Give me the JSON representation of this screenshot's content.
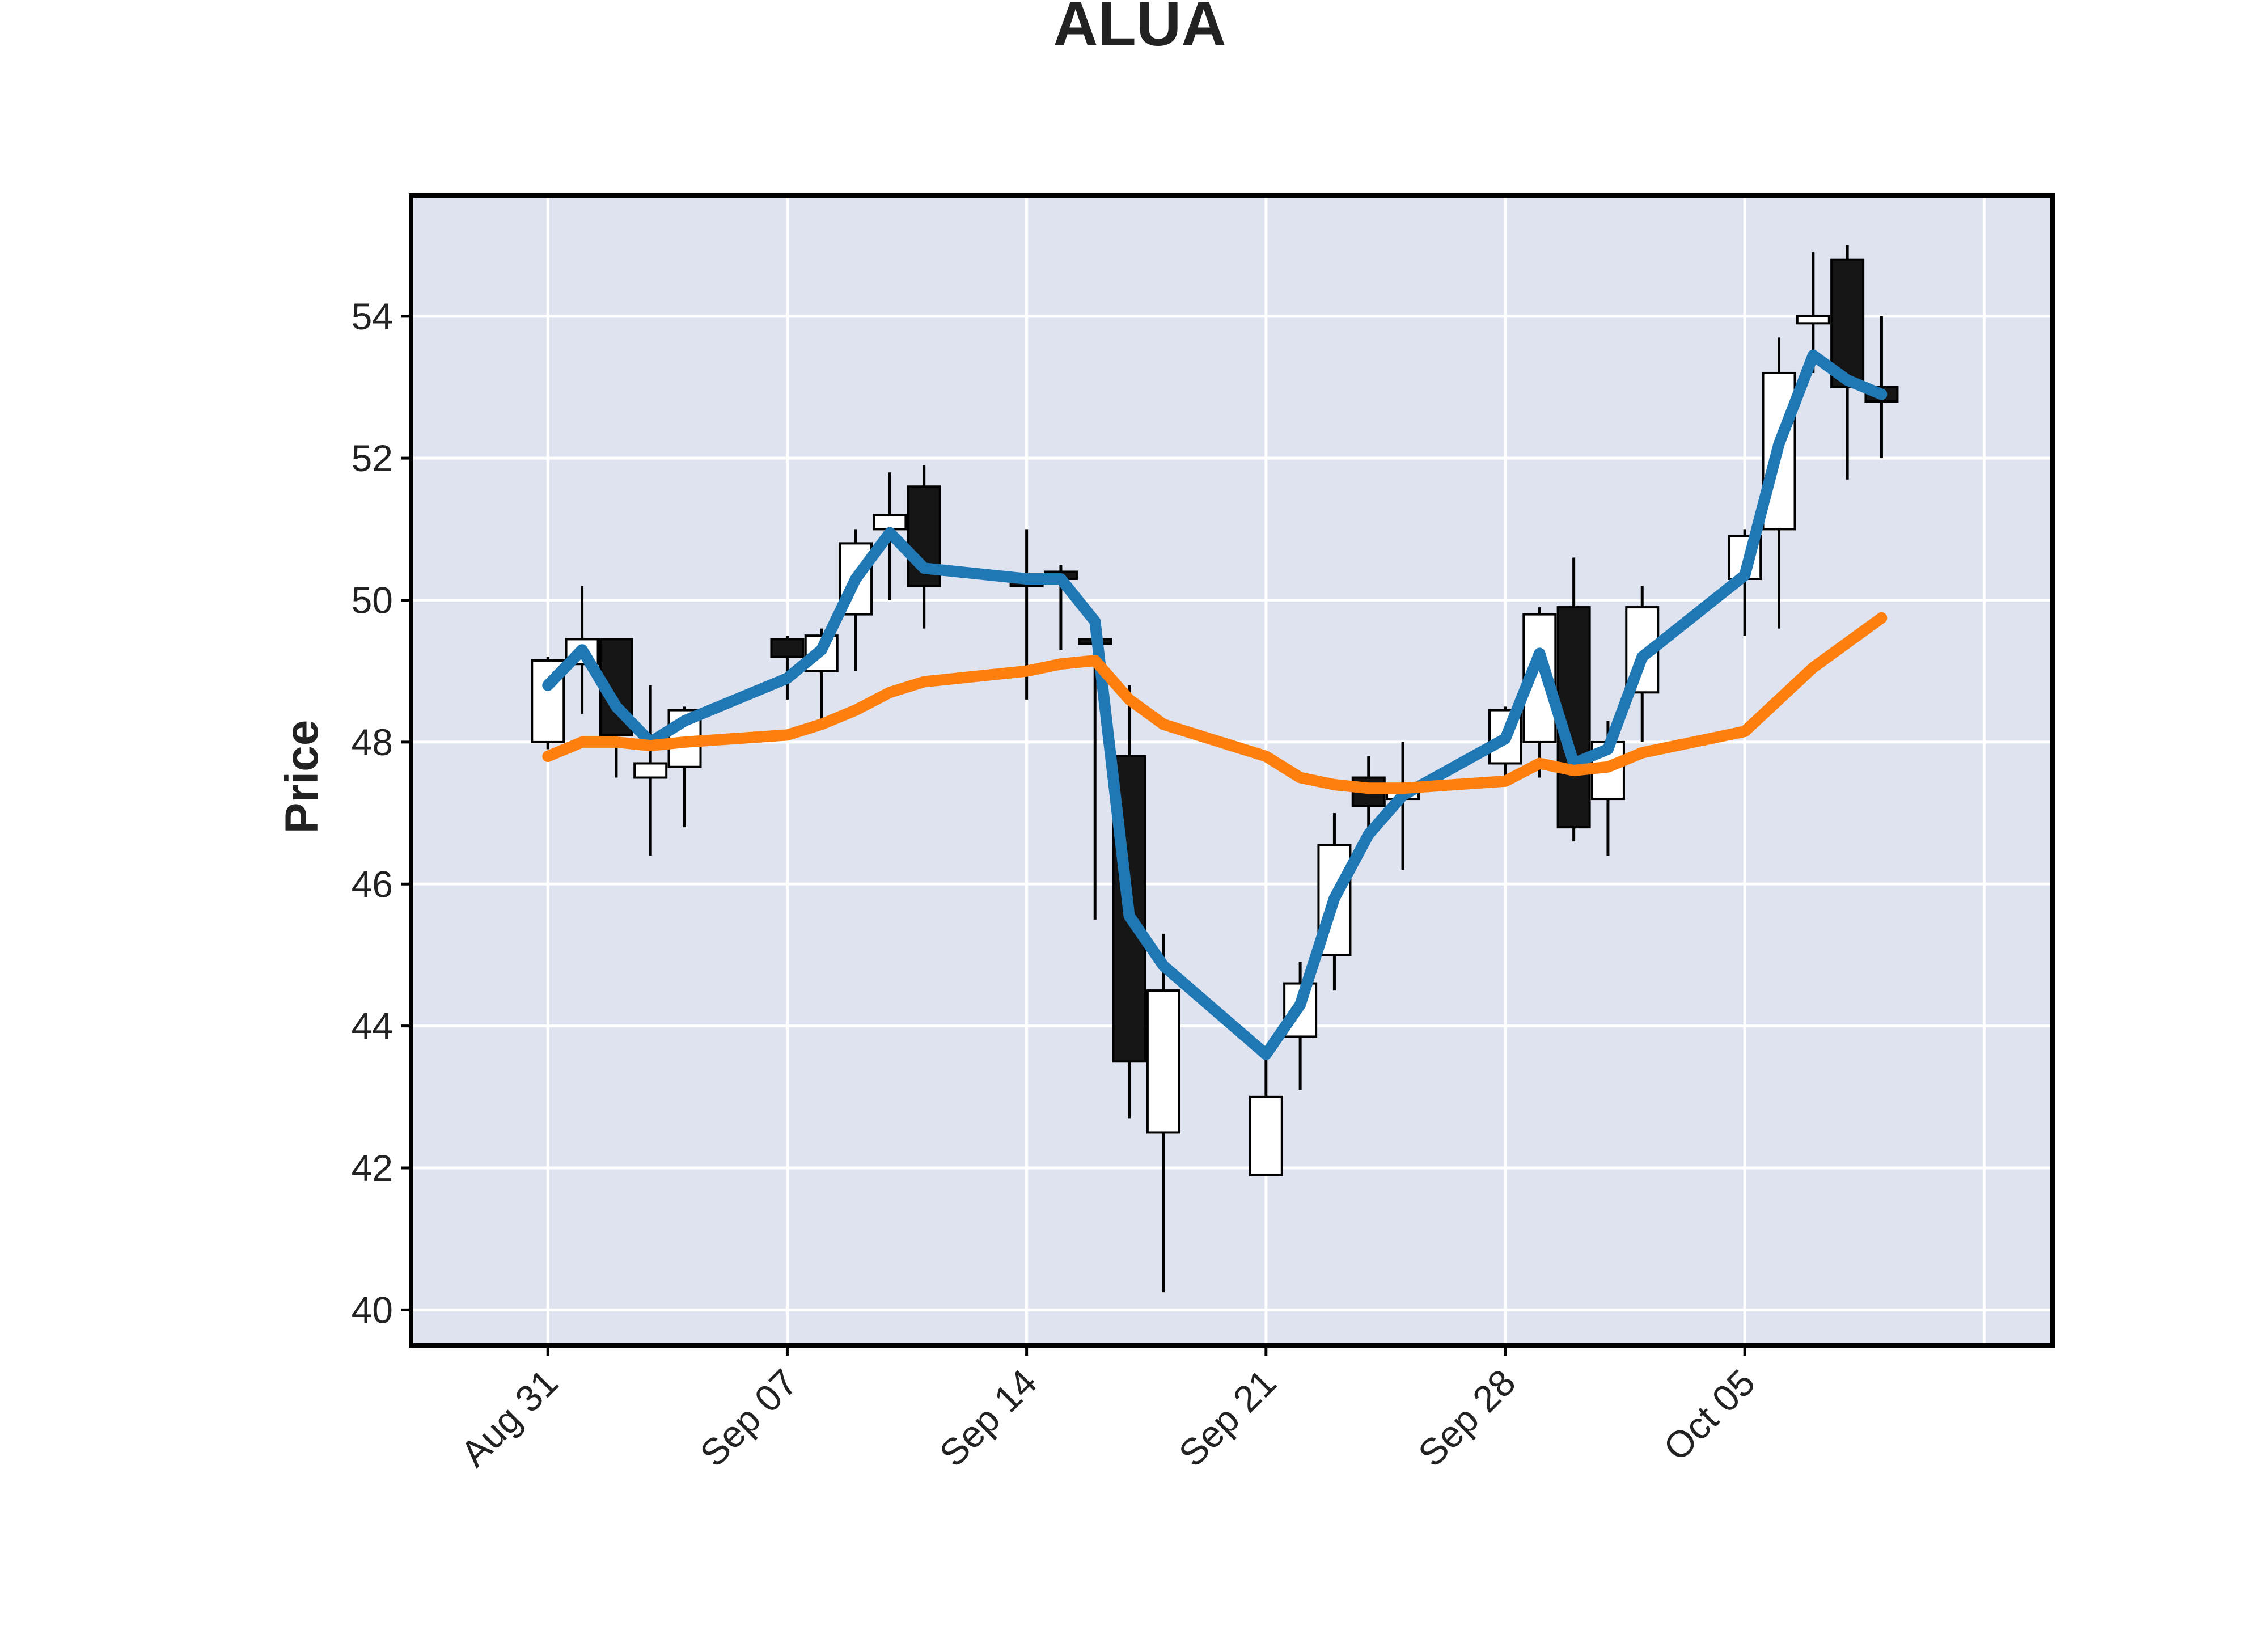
{
  "chart_data": {
    "type": "candlestick",
    "title": "ALUA",
    "xlabel": "",
    "ylabel": "Price",
    "ylim": [
      39.5,
      55.7
    ],
    "yticks": [
      40,
      42,
      44,
      46,
      48,
      50,
      52,
      54
    ],
    "xticks": [
      {
        "date": "2020-08-31",
        "label": "Aug 31"
      },
      {
        "date": "2020-09-07",
        "label": "Sep 07"
      },
      {
        "date": "2020-09-14",
        "label": "Sep 14"
      },
      {
        "date": "2020-09-21",
        "label": "Sep 21"
      },
      {
        "date": "2020-09-28",
        "label": "Sep 28"
      },
      {
        "date": "2020-10-05",
        "label": "Oct 05"
      }
    ],
    "xlim": [
      "2020-08-27",
      "2020-10-14"
    ],
    "grid": true,
    "background": "#dee3ef",
    "up_color": "#ffffff",
    "down_color": "#161616",
    "ohlc": [
      {
        "date": "2020-08-31",
        "open": 48.0,
        "high": 49.2,
        "low": 47.9,
        "close": 49.15
      },
      {
        "date": "2020-09-01",
        "open": 49.1,
        "high": 50.2,
        "low": 48.4,
        "close": 49.45
      },
      {
        "date": "2020-09-02",
        "open": 49.45,
        "high": 49.45,
        "low": 47.5,
        "close": 48.1
      },
      {
        "date": "2020-09-03",
        "open": 47.5,
        "high": 48.8,
        "low": 46.4,
        "close": 47.7
      },
      {
        "date": "2020-09-04",
        "open": 47.65,
        "high": 48.5,
        "low": 46.8,
        "close": 48.45
      },
      {
        "date": "2020-09-07",
        "open": 49.45,
        "high": 49.5,
        "low": 48.6,
        "close": 49.2
      },
      {
        "date": "2020-09-08",
        "open": 49.0,
        "high": 49.6,
        "low": 48.3,
        "close": 49.5
      },
      {
        "date": "2020-09-09",
        "open": 49.8,
        "high": 51.0,
        "low": 49.0,
        "close": 50.8
      },
      {
        "date": "2020-09-10",
        "open": 51.0,
        "high": 51.8,
        "low": 50.0,
        "close": 51.2
      },
      {
        "date": "2020-09-11",
        "open": 51.6,
        "high": 51.9,
        "low": 49.6,
        "close": 50.2
      },
      {
        "date": "2020-09-14",
        "open": 50.3,
        "high": 51.0,
        "low": 48.6,
        "close": 50.2
      },
      {
        "date": "2020-09-15",
        "open": 50.4,
        "high": 50.5,
        "low": 49.3,
        "close": 50.3
      },
      {
        "date": "2020-09-16",
        "open": 49.45,
        "high": 49.5,
        "low": 45.5,
        "close": 49.4
      },
      {
        "date": "2020-09-17",
        "open": 47.8,
        "high": 48.8,
        "low": 42.7,
        "close": 43.5
      },
      {
        "date": "2020-09-18",
        "open": 42.5,
        "high": 45.3,
        "low": 40.25,
        "close": 44.5
      },
      {
        "date": "2020-09-21",
        "open": 41.9,
        "high": 43.6,
        "low": 41.9,
        "close": 43.0
      },
      {
        "date": "2020-09-22",
        "open": 43.85,
        "high": 44.9,
        "low": 43.1,
        "close": 44.6
      },
      {
        "date": "2020-09-23",
        "open": 45.0,
        "high": 47.0,
        "low": 44.5,
        "close": 46.55
      },
      {
        "date": "2020-09-24",
        "open": 47.5,
        "high": 47.8,
        "low": 46.6,
        "close": 47.1
      },
      {
        "date": "2020-09-25",
        "open": 47.2,
        "high": 48.0,
        "low": 46.2,
        "close": 47.3
      },
      {
        "date": "2020-09-28",
        "open": 47.7,
        "high": 48.5,
        "low": 47.5,
        "close": 48.45
      },
      {
        "date": "2020-09-29",
        "open": 48.0,
        "high": 49.9,
        "low": 47.5,
        "close": 49.8
      },
      {
        "date": "2020-09-30",
        "open": 49.9,
        "high": 50.6,
        "low": 46.6,
        "close": 46.8
      },
      {
        "date": "2020-10-01",
        "open": 47.2,
        "high": 48.3,
        "low": 46.4,
        "close": 48.0
      },
      {
        "date": "2020-10-02",
        "open": 48.7,
        "high": 50.2,
        "low": 48.0,
        "close": 49.9
      },
      {
        "date": "2020-10-05",
        "open": 50.3,
        "high": 51.0,
        "low": 49.5,
        "close": 50.9
      },
      {
        "date": "2020-10-06",
        "open": 51.0,
        "high": 53.7,
        "low": 49.6,
        "close": 53.2
      },
      {
        "date": "2020-10-07",
        "open": 53.9,
        "high": 54.9,
        "low": 53.2,
        "close": 54.0
      },
      {
        "date": "2020-10-08",
        "open": 54.8,
        "high": 55.0,
        "low": 51.7,
        "close": 53.0
      },
      {
        "date": "2020-10-09",
        "open": 53.0,
        "high": 54.0,
        "low": 52.0,
        "close": 52.8
      }
    ],
    "series": [
      {
        "color": "#1f77b4",
        "values": [
          48.8,
          49.3,
          48.5,
          48.0,
          48.3,
          48.9,
          49.3,
          50.3,
          50.95,
          50.45,
          50.3,
          50.3,
          49.7,
          45.55,
          44.85,
          43.6,
          44.3,
          45.8,
          46.7,
          47.25,
          48.05,
          49.25,
          47.7,
          47.9,
          49.2,
          50.35,
          52.2,
          53.45,
          53.1,
          52.9
        ]
      },
      {
        "color": "#ff7f0e",
        "values": [
          47.8,
          48.0,
          48.0,
          47.95,
          48.0,
          48.1,
          48.25,
          48.45,
          48.7,
          48.85,
          49.0,
          49.1,
          49.15,
          48.6,
          48.25,
          47.8,
          47.5,
          47.4,
          47.35,
          47.35,
          47.45,
          47.7,
          47.6,
          47.65,
          47.85,
          48.15,
          48.6,
          49.05,
          49.4,
          49.75
        ]
      }
    ]
  }
}
